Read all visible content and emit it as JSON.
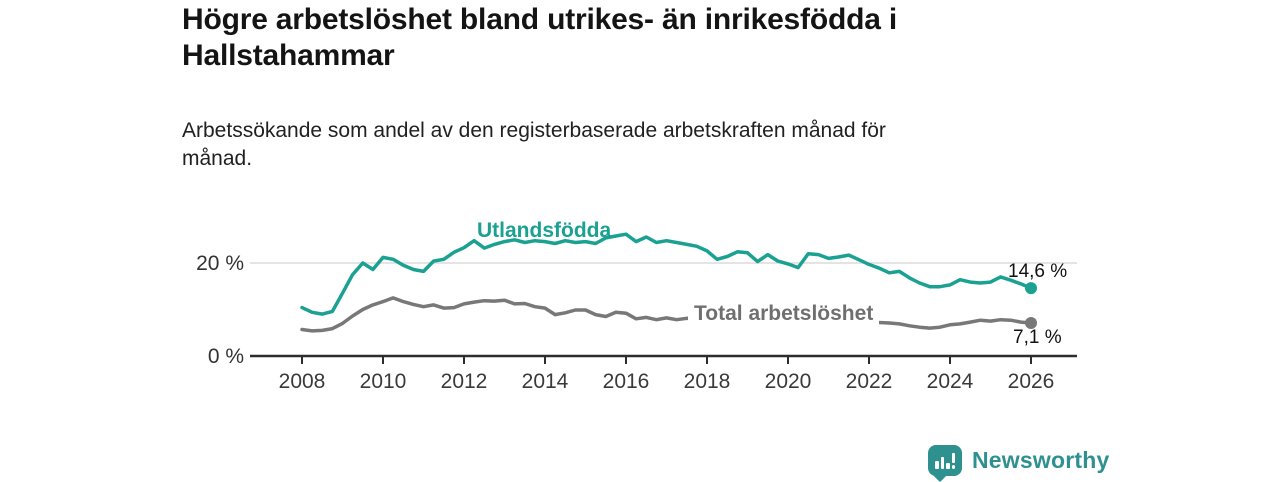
{
  "title": "Högre arbetslöshet bland utrikes- än inrikesfödda i Hallstahammar",
  "title_lines": [
    "Högre arbetslöshet bland utrikes- än inrikesfödda i",
    "Hallstahammar"
  ],
  "subtitle": "Arbetssökande som andel av den registerbaserade arbetskraften månad för månad.",
  "subtitle_lines": [
    "Arbetssökande som andel av den registerbaserade arbetskraften månad för",
    "månad."
  ],
  "brand": {
    "name": "Newsworthy",
    "logo_icon": "bar-chart-speech-bubble-icon",
    "color": "#2e9190"
  },
  "colors": {
    "utlandsfodda_line": "#1ba192",
    "total_line": "#787878",
    "axis": "#2d2d2d",
    "gridline": "#dcdcdc",
    "tick_label": "#3a3a3a"
  },
  "chart_data": {
    "type": "line",
    "title": "Högre arbetslöshet bland utrikes- än inrikesfödda i Hallstahammar",
    "xlabel": "",
    "ylabel": "Arbetssökande som andel av den registerbaserade arbetskraften",
    "unit": "%",
    "x_range": [
      2008,
      2026
    ],
    "y_range": [
      0,
      28
    ],
    "x_ticks": [
      2008,
      2010,
      2012,
      2014,
      2016,
      2018,
      2020,
      2022,
      2024,
      2026
    ],
    "y_ticks": [
      {
        "value": 0,
        "label": "0 %"
      },
      {
        "value": 20,
        "label": "20 %"
      }
    ],
    "grid": "horizontal-gridline-at-20-only",
    "legend_position": "inline-series-labels",
    "x_start": 2008,
    "x_step": 0.25,
    "series": [
      {
        "name": "Utlandsfödda",
        "color": "#1ba192",
        "end_label": "14,6 %",
        "end_value": 14.6,
        "values": [
          10.4,
          9.4,
          9.0,
          9.6,
          13.5,
          17.5,
          20.0,
          18.6,
          21.2,
          20.8,
          19.5,
          18.6,
          18.2,
          20.4,
          20.8,
          22.3,
          23.3,
          24.8,
          23.2,
          24.0,
          24.6,
          25.0,
          24.4,
          24.8,
          24.6,
          24.2,
          24.8,
          24.4,
          24.6,
          24.2,
          25.4,
          25.8,
          26.2,
          24.6,
          25.6,
          24.4,
          24.8,
          24.4,
          24.0,
          23.6,
          22.6,
          20.8,
          21.4,
          22.4,
          22.2,
          20.3,
          21.8,
          20.4,
          19.8,
          19.0,
          22.0,
          21.8,
          21.0,
          21.3,
          21.7,
          20.7,
          19.7,
          18.9,
          17.9,
          18.2,
          16.8,
          15.7,
          14.9,
          14.9,
          15.3,
          16.4,
          15.9,
          15.7,
          15.9,
          17.0,
          16.3,
          15.5,
          14.6
        ]
      },
      {
        "name": "Total arbetslöshet",
        "color": "#787878",
        "end_label": "7,1 %",
        "end_value": 7.1,
        "values": [
          5.7,
          5.4,
          5.5,
          5.9,
          7.0,
          8.6,
          10.0,
          11.0,
          11.7,
          12.5,
          11.7,
          11.1,
          10.6,
          11.0,
          10.3,
          10.4,
          11.2,
          11.6,
          11.9,
          11.8,
          12.0,
          11.2,
          11.3,
          10.6,
          10.3,
          8.9,
          9.3,
          9.9,
          9.9,
          8.9,
          8.5,
          9.4,
          9.2,
          8.0,
          8.3,
          7.8,
          8.2,
          7.8,
          8.1,
          8.0,
          8.2,
          8.0,
          7.9,
          8.1,
          8.0,
          7.8,
          7.9,
          7.7,
          7.8,
          8.6,
          8.5,
          8.3,
          8.1,
          7.9,
          7.7,
          7.5,
          7.4,
          7.2,
          7.1,
          6.9,
          6.5,
          6.2,
          6.0,
          6.2,
          6.7,
          6.9,
          7.3,
          7.7,
          7.5,
          7.8,
          7.7,
          7.3,
          7.1
        ]
      }
    ]
  }
}
